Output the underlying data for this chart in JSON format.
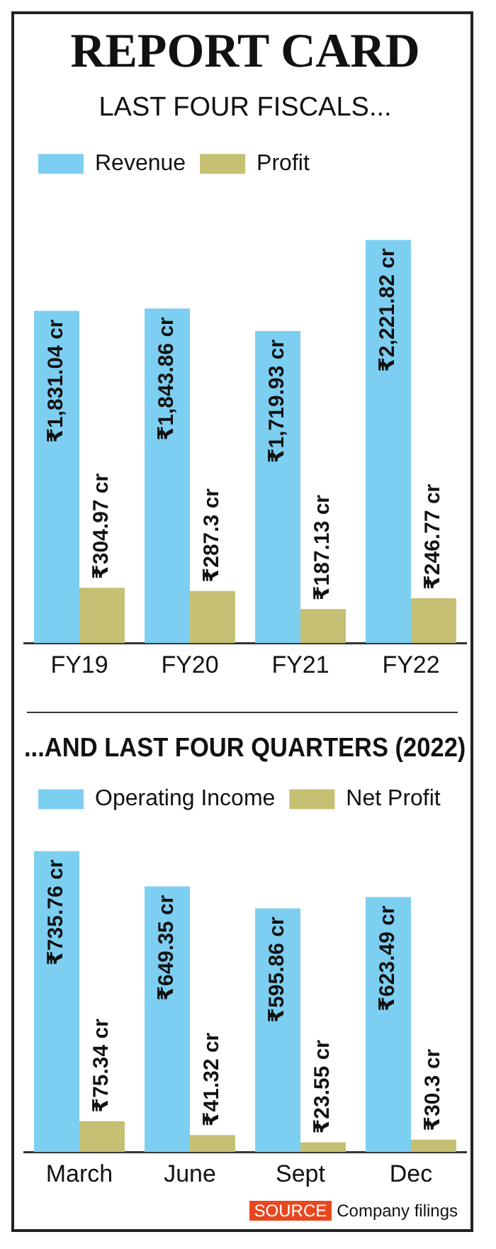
{
  "chart_data": [
    {
      "type": "bar",
      "title": "REPORT CARD",
      "subtitle": "LAST FOUR FISCALS...",
      "categories": [
        "FY19",
        "FY20",
        "FY21",
        "FY22"
      ],
      "series": [
        {
          "name": "Revenue",
          "color": "#7dcff2",
          "values": [
            1831.04,
            1843.86,
            1719.93,
            2221.82
          ],
          "value_labels": [
            "₹1,831.04 cr",
            "₹1,843.86 cr",
            "₹1,719.93 cr",
            "₹2,221.82 cr"
          ]
        },
        {
          "name": "Profit",
          "color": "#c4bf72",
          "values": [
            304.97,
            287.3,
            187.13,
            246.77
          ],
          "value_labels": [
            "₹304.97 cr",
            "₹287.3 cr",
            "₹187.13 cr",
            "₹246.77 cr"
          ]
        }
      ],
      "legend": "top left",
      "grid": false
    },
    {
      "type": "bar",
      "title": "...AND LAST FOUR QUARTERS (2022)",
      "categories": [
        "March",
        "June",
        "Sept",
        "Dec"
      ],
      "series": [
        {
          "name": "Operating Income",
          "color": "#7dcff2",
          "values": [
            735.76,
            649.35,
            595.86,
            623.49
          ],
          "value_labels": [
            "₹735.76 cr",
            "₹649.35 cr",
            "₹595.86 cr",
            "₹623.49 cr"
          ]
        },
        {
          "name": "Net Profit",
          "color": "#c4bf72",
          "values": [
            75.34,
            41.32,
            23.55,
            30.3
          ],
          "value_labels": [
            "₹75.34 cr",
            "₹41.32 cr",
            "₹23.55 cr",
            "₹30.3 cr"
          ]
        }
      ],
      "legend": "top left",
      "grid": false,
      "annotations": [
        "SOURCE",
        "Company filings"
      ]
    }
  ]
}
